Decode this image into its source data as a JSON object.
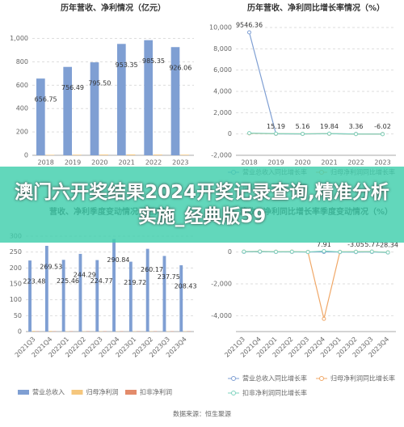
{
  "banner": "澳门六开奖结果2024开奖记录查询,精准分析实施_经典版59",
  "source": "数据来源：恒生聚源",
  "chart_data": [
    {
      "type": "bar",
      "title": "历年营收、净利情况（亿元）",
      "categories": [
        "2018",
        "2019",
        "2020",
        "2021",
        "2022",
        "2023"
      ],
      "series": [
        {
          "color": "#7f9fd3",
          "values": [
            656.75,
            756.49,
            795.5,
            953.35,
            985.35,
            926.06
          ],
          "value_labels": [
            "656.75",
            "756.49",
            "795.50",
            "953.35",
            "985.35",
            "926.06"
          ]
        },
        {
          "color": "#f5c77e",
          "values": [
            4,
            5,
            6,
            7,
            6,
            5
          ]
        }
      ],
      "ylim": [
        0,
        1080
      ],
      "yticks": [
        0,
        200,
        400,
        600,
        800,
        {
          "value": 1000,
          "label": "1,000"
        }
      ],
      "grid": true
    },
    {
      "type": "line",
      "title": "历年营收、净利同比增长率情况（%）",
      "categories": [
        "2018",
        "2019",
        "2020",
        "2021",
        "2022",
        "2023"
      ],
      "series": [
        {
          "name": "营业总收入同比增长率",
          "color": "#7f9fd3",
          "values": [
            9546.36,
            15.19,
            5.16,
            19.84,
            3.36,
            -6.02
          ],
          "value_labels": [
            "9546.36",
            "15.19",
            "5.16",
            "19.84",
            "3.36",
            "-6.02"
          ]
        },
        {
          "name": "归母净利润同比增长率",
          "color": "#f0a868",
          "values": [
            60,
            20,
            10,
            25,
            -5,
            -10
          ]
        },
        {
          "name": "扣非净利润同比增长率",
          "color": "#7fd3bf",
          "values": [
            80,
            30,
            15,
            30,
            -8,
            -12
          ]
        }
      ],
      "ylim": [
        -2000,
        10000
      ],
      "yticks": [
        {
          "value": -2000,
          "label": "-2,000"
        },
        0,
        {
          "value": 2000,
          "label": "2,000"
        },
        {
          "value": 4000,
          "label": "4,000"
        },
        {
          "value": 6000,
          "label": "6,000"
        },
        {
          "value": 8000,
          "label": "8,000"
        },
        {
          "value": 10000,
          "label": "10,000"
        }
      ],
      "grid": true
    },
    {
      "type": "bar",
      "title": "营收、净利季度变动情况（亿元）",
      "categories": [
        "2021Q3",
        "2021Q4",
        "2022Q1",
        "2022Q2",
        "2022Q3",
        "2022Q4",
        "2023Q1",
        "2023Q2",
        "2023Q3",
        "2023Q4"
      ],
      "series": [
        {
          "name": "营业总收入",
          "color": "#7f9fd3",
          "values": [
            223.48,
            269.53,
            225.46,
            244.29,
            224.77,
            290.84,
            219.72,
            260.17,
            237.75,
            208.43
          ],
          "value_labels": [
            "223.48",
            "269.53",
            "225.46",
            "244.29",
            "224.77",
            "290.84",
            "219.72",
            "260.17",
            "237.75",
            "208.43"
          ]
        },
        {
          "name": "归母净利润",
          "color": "#f5c77e",
          "values": [
            2,
            2,
            1,
            1,
            1,
            1,
            1,
            1,
            1,
            1
          ]
        },
        {
          "name": "扣非净利润",
          "color": "#e38b6b",
          "values": [
            1,
            1,
            1,
            1,
            1,
            1,
            1,
            1,
            1,
            1
          ]
        }
      ],
      "ylim": [
        0,
        300
      ],
      "yticks": [
        0,
        50,
        100,
        150,
        200,
        250,
        300
      ],
      "grid": true
    },
    {
      "type": "line",
      "title": "营收、净利同比增长率季度变动情况（%）",
      "categories": [
        "2021Q3",
        "2021Q4",
        "2022Q1",
        "2022Q2",
        "2022Q3",
        "2022Q4",
        "2023Q1",
        "2023Q2",
        "2023Q3",
        "2023Q4"
      ],
      "series": [
        {
          "name": "营业总收入同比增长率",
          "color": "#7f9fd3",
          "values": [
            12,
            18,
            6,
            10,
            1,
            7.91,
            -2,
            -3.05,
            5.77,
            -28.34
          ],
          "value_labels": [
            null,
            null,
            null,
            null,
            null,
            "7.91",
            null,
            "-3.05",
            "5.77",
            "-28.34"
          ]
        },
        {
          "name": "归母净利润同比增长率",
          "color": "#f0a868",
          "values": [
            30,
            40,
            20,
            25,
            10,
            -4200,
            15,
            20,
            30,
            -20
          ]
        },
        {
          "name": "扣非净利润同比增长率",
          "color": "#7fd3bf",
          "values": [
            25,
            35,
            15,
            20,
            5,
            60,
            10,
            15,
            25,
            -25
          ]
        }
      ],
      "ylim": [
        -5000,
        1000
      ],
      "yticks": [
        {
          "value": -4000,
          "label": "-4,000"
        },
        {
          "value": -2000,
          "label": "-2,000"
        },
        0
      ],
      "grid": true
    }
  ]
}
